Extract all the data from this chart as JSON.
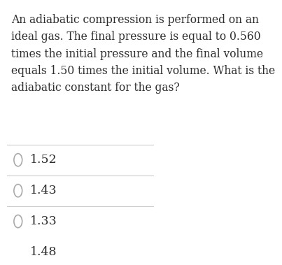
{
  "question_lines": [
    "An adiabatic compression is performed on an",
    "ideal gas. The final pressure is equal to 0.560",
    "times the initial pressure and the final volume",
    "equals 1.50 times the initial volume. What is the",
    "adiabatic constant for the gas?"
  ],
  "options": [
    "1.52",
    "1.43",
    "1.33",
    "1.48"
  ],
  "background_color": "#ffffff",
  "text_color": "#2d2d2d",
  "line_color": "#cccccc",
  "circle_color": "#aaaaaa",
  "question_fontsize": 11.2,
  "option_fontsize": 12.5,
  "fig_width": 3.37,
  "fig_height": 3.58
}
